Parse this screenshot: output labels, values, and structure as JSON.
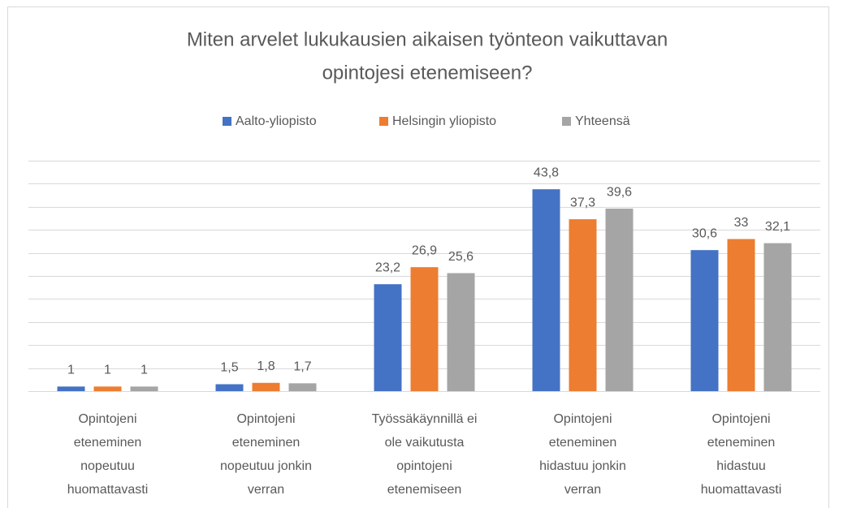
{
  "chart_data": {
    "type": "bar",
    "title": [
      "Miten arvelet lukukausien aikaisen työnteon vaikuttavan",
      "opintojesi etenemiseen?"
    ],
    "categories": [
      "Opintojeni\neteneminen\nnopeutuu\nhuomattavasti",
      "Opintojeni\neteneminen\nnopeutuu jonkin\nverran",
      "Työssäkäynnillä ei\nole vaikutusta\nopintojeni\netenemiseen",
      "Opintojeni\neteneminen\nhidastuu jonkin\nverran",
      "Opintojeni\neteneminen\nhidastuu\nhuomattavasti"
    ],
    "series": [
      {
        "name": "Aalto-yliopisto",
        "color": "#4472c4",
        "values": [
          1,
          1.5,
          23.2,
          43.8,
          30.6
        ],
        "value_labels": [
          "1",
          "1,5",
          "23,2",
          "43,8",
          "30,6"
        ]
      },
      {
        "name": "Helsingin yliopisto",
        "color": "#ed7d31",
        "values": [
          1,
          1.8,
          26.9,
          37.3,
          33
        ],
        "value_labels": [
          "1",
          "1,8",
          "26,9",
          "37,3",
          "33"
        ]
      },
      {
        "name": "Yhteensä",
        "color": "#a5a5a5",
        "values": [
          1,
          1.7,
          25.6,
          39.6,
          32.1
        ],
        "value_labels": [
          "1",
          "1,7",
          "25,6",
          "39,6",
          "32,1"
        ]
      }
    ],
    "ylim": [
      0,
      50
    ],
    "yticks": [
      0,
      5,
      10,
      15,
      20,
      25,
      30,
      35,
      40,
      45,
      50
    ],
    "grid": true,
    "legend": "top"
  }
}
